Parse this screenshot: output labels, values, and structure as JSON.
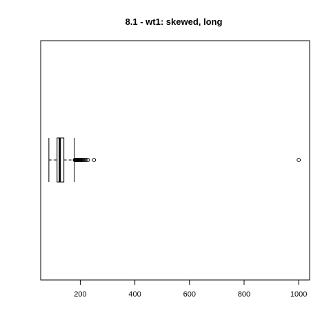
{
  "chart_data": {
    "type": "boxplot",
    "orientation": "horizontal",
    "title": "8.1 - wt1: skewed, long",
    "xlabel": "",
    "ylabel": "",
    "xlim": [
      55,
      1040
    ],
    "x_ticks": [
      200,
      400,
      600,
      800,
      1000
    ],
    "x_tick_labels": [
      "200",
      "400",
      "600",
      "800",
      "1000"
    ],
    "grid": false,
    "legend": "none",
    "box": {
      "whisker_low": 85,
      "q1": 115,
      "median": 125,
      "q3": 140,
      "whisker_high": 178
    },
    "outliers": [
      180,
      182,
      184,
      186,
      188,
      190,
      192,
      194,
      196,
      198,
      200,
      202,
      205,
      208,
      212,
      216,
      222,
      228,
      250,
      1000
    ],
    "colors": {
      "stroke": "#000000",
      "background": "#ffffff"
    }
  }
}
